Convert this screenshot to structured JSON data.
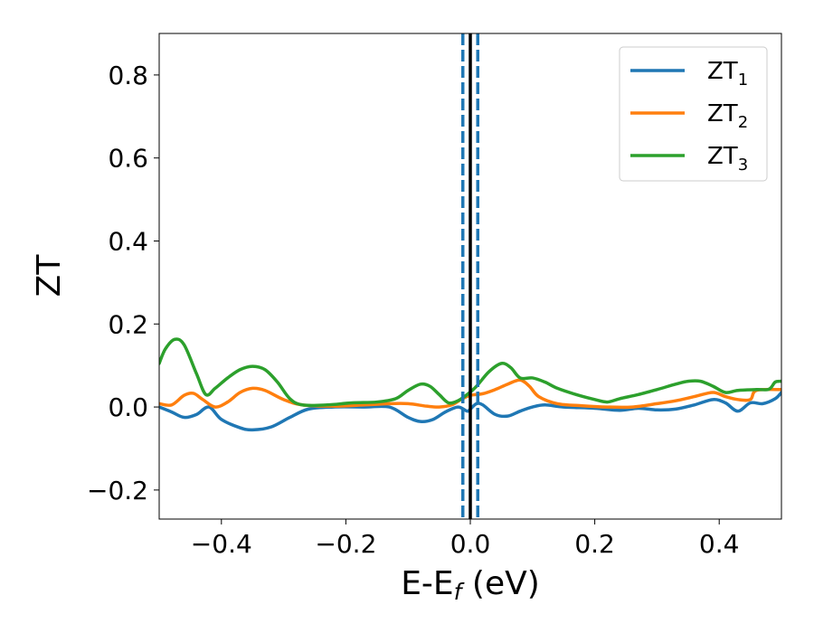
{
  "chart_data": {
    "type": "line",
    "xlabel_main": "E-E",
    "xlabel_sub": "f",
    "xlabel_unit": " (eV)",
    "ylabel": "ZT",
    "xlim": [
      -0.5,
      0.5
    ],
    "ylim": [
      -0.27,
      0.9
    ],
    "x_ticks": [
      -0.4,
      -0.2,
      0.0,
      0.2,
      0.4
    ],
    "x_tick_labels": [
      "−0.4",
      "−0.2",
      "0.0",
      "0.2",
      "0.4"
    ],
    "y_ticks": [
      -0.2,
      0.0,
      0.2,
      0.4,
      0.6,
      0.8
    ],
    "y_tick_labels": [
      "−0.2",
      "0.0",
      "0.2",
      "0.4",
      "0.6",
      "0.8"
    ],
    "legend_position": "top-right",
    "grid": false,
    "vertical_lines": [
      {
        "x": -0.012,
        "style": "dashed",
        "color": "#1f77b4"
      },
      {
        "x": 0.0,
        "style": "solid",
        "color": "#000000"
      },
      {
        "x": 0.012,
        "style": "dashed",
        "color": "#1f77b4"
      }
    ],
    "series": [
      {
        "name_main": "ZT",
        "name_sub": "1",
        "color": "#1f77b4",
        "points": [
          [
            -0.5,
            0.0
          ],
          [
            -0.48,
            -0.012
          ],
          [
            -0.46,
            -0.025
          ],
          [
            -0.44,
            -0.018
          ],
          [
            -0.42,
            0.0
          ],
          [
            -0.4,
            -0.03
          ],
          [
            -0.37,
            -0.05
          ],
          [
            -0.35,
            -0.055
          ],
          [
            -0.32,
            -0.048
          ],
          [
            -0.29,
            -0.025
          ],
          [
            -0.26,
            -0.005
          ],
          [
            -0.22,
            0.0
          ],
          [
            -0.17,
            0.0
          ],
          [
            -0.13,
            0.0
          ],
          [
            -0.1,
            -0.025
          ],
          [
            -0.08,
            -0.035
          ],
          [
            -0.06,
            -0.03
          ],
          [
            -0.04,
            -0.012
          ],
          [
            -0.02,
            0.0
          ],
          [
            -0.005,
            -0.01
          ],
          [
            0.0,
            -0.005
          ],
          [
            0.01,
            0.008
          ],
          [
            0.02,
            0.005
          ],
          [
            0.04,
            -0.018
          ],
          [
            0.06,
            -0.022
          ],
          [
            0.08,
            -0.01
          ],
          [
            0.1,
            0.0
          ],
          [
            0.12,
            0.005
          ],
          [
            0.15,
            0.0
          ],
          [
            0.2,
            -0.003
          ],
          [
            0.24,
            -0.008
          ],
          [
            0.27,
            -0.003
          ],
          [
            0.3,
            -0.007
          ],
          [
            0.33,
            -0.005
          ],
          [
            0.36,
            0.005
          ],
          [
            0.39,
            0.018
          ],
          [
            0.41,
            0.01
          ],
          [
            0.43,
            -0.01
          ],
          [
            0.45,
            0.01
          ],
          [
            0.47,
            0.008
          ],
          [
            0.49,
            0.02
          ],
          [
            0.5,
            0.035
          ]
        ]
      },
      {
        "name_main": "ZT",
        "name_sub": "2",
        "color": "#ff7f0e",
        "points": [
          [
            -0.5,
            0.008
          ],
          [
            -0.48,
            0.005
          ],
          [
            -0.46,
            0.028
          ],
          [
            -0.445,
            0.033
          ],
          [
            -0.43,
            0.018
          ],
          [
            -0.41,
            0.0
          ],
          [
            -0.39,
            0.012
          ],
          [
            -0.37,
            0.035
          ],
          [
            -0.35,
            0.045
          ],
          [
            -0.33,
            0.04
          ],
          [
            -0.3,
            0.018
          ],
          [
            -0.27,
            0.005
          ],
          [
            -0.22,
            0.002
          ],
          [
            -0.17,
            0.005
          ],
          [
            -0.13,
            0.008
          ],
          [
            -0.1,
            0.008
          ],
          [
            -0.07,
            0.002
          ],
          [
            -0.05,
            0.0
          ],
          [
            -0.03,
            0.005
          ],
          [
            -0.015,
            0.018
          ],
          [
            0.0,
            0.028
          ],
          [
            0.02,
            0.032
          ],
          [
            0.04,
            0.042
          ],
          [
            0.06,
            0.055
          ],
          [
            0.08,
            0.065
          ],
          [
            0.095,
            0.05
          ],
          [
            0.11,
            0.025
          ],
          [
            0.14,
            0.008
          ],
          [
            0.18,
            0.003
          ],
          [
            0.22,
            0.0
          ],
          [
            0.26,
            0.0
          ],
          [
            0.3,
            0.008
          ],
          [
            0.33,
            0.015
          ],
          [
            0.36,
            0.025
          ],
          [
            0.39,
            0.035
          ],
          [
            0.41,
            0.025
          ],
          [
            0.43,
            0.018
          ],
          [
            0.45,
            0.018
          ],
          [
            0.46,
            0.04
          ],
          [
            0.5,
            0.042
          ]
        ]
      },
      {
        "name_main": "ZT",
        "name_sub": "3",
        "color": "#2ca02c",
        "points": [
          [
            -0.5,
            0.105
          ],
          [
            -0.49,
            0.14
          ],
          [
            -0.475,
            0.163
          ],
          [
            -0.46,
            0.15
          ],
          [
            -0.44,
            0.08
          ],
          [
            -0.425,
            0.03
          ],
          [
            -0.41,
            0.045
          ],
          [
            -0.39,
            0.07
          ],
          [
            -0.37,
            0.09
          ],
          [
            -0.35,
            0.098
          ],
          [
            -0.33,
            0.09
          ],
          [
            -0.31,
            0.06
          ],
          [
            -0.29,
            0.02
          ],
          [
            -0.27,
            0.005
          ],
          [
            -0.23,
            0.005
          ],
          [
            -0.19,
            0.01
          ],
          [
            -0.15,
            0.012
          ],
          [
            -0.12,
            0.02
          ],
          [
            -0.1,
            0.04
          ],
          [
            -0.08,
            0.055
          ],
          [
            -0.065,
            0.05
          ],
          [
            -0.05,
            0.03
          ],
          [
            -0.035,
            0.01
          ],
          [
            -0.02,
            0.015
          ],
          [
            -0.005,
            0.03
          ],
          [
            0.01,
            0.05
          ],
          [
            0.03,
            0.085
          ],
          [
            0.05,
            0.105
          ],
          [
            0.065,
            0.095
          ],
          [
            0.08,
            0.07
          ],
          [
            0.1,
            0.07
          ],
          [
            0.12,
            0.06
          ],
          [
            0.14,
            0.045
          ],
          [
            0.17,
            0.03
          ],
          [
            0.2,
            0.018
          ],
          [
            0.22,
            0.012
          ],
          [
            0.24,
            0.02
          ],
          [
            0.27,
            0.03
          ],
          [
            0.3,
            0.042
          ],
          [
            0.33,
            0.055
          ],
          [
            0.35,
            0.062
          ],
          [
            0.37,
            0.062
          ],
          [
            0.39,
            0.05
          ],
          [
            0.41,
            0.035
          ],
          [
            0.43,
            0.04
          ],
          [
            0.46,
            0.042
          ],
          [
            0.48,
            0.043
          ],
          [
            0.49,
            0.06
          ],
          [
            0.5,
            0.062
          ]
        ]
      }
    ]
  }
}
